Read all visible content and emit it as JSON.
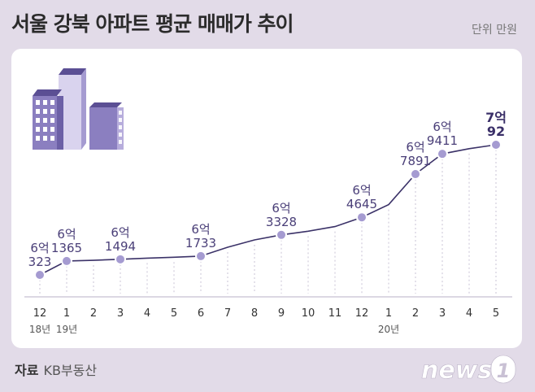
{
  "header": {
    "title": "서울 강북 아파트 평균 매매가 추이",
    "unit": "단위 만원"
  },
  "source": {
    "label": "자료",
    "value": "KB부동산"
  },
  "logo": {
    "text": "news",
    "mark": "1"
  },
  "colors": {
    "background": "#e2dbe8",
    "card": "#ffffff",
    "line": "#3b3268",
    "point": "#a59bd1",
    "point_stroke": "#ffffff",
    "label": "#4a3f78",
    "icon_primary": "#8b7fc0",
    "icon_light": "#d9d3ee",
    "icon_dark": "#5b4f94"
  },
  "decoration": {
    "icon": "apartment-buildings-icon"
  },
  "chart_data": {
    "type": "line",
    "title": "서울 강북 아파트 평균 매매가 추이",
    "xlabel": "",
    "ylabel": "",
    "unit": "단위 만원",
    "categories": [
      "12",
      "1",
      "2",
      "3",
      "4",
      "5",
      "6",
      "7",
      "8",
      "9",
      "10",
      "11",
      "12",
      "1",
      "2",
      "3",
      "4",
      "5"
    ],
    "values": [
      60323,
      61365,
      61420,
      61494,
      61580,
      61650,
      61733,
      62400,
      62950,
      63328,
      63600,
      63950,
      64645,
      65600,
      67891,
      69411,
      69800,
      70092
    ],
    "year_marks": [
      {
        "index": 0,
        "label": "18년"
      },
      {
        "index": 1,
        "label": "19년"
      },
      {
        "index": 13,
        "label": "20년"
      }
    ],
    "annotations": [
      {
        "index": 0,
        "line1": "6억",
        "line2": "323"
      },
      {
        "index": 1,
        "line1": "6억",
        "line2": "1365"
      },
      {
        "index": 3,
        "line1": "6억",
        "line2": "1494"
      },
      {
        "index": 6,
        "line1": "6억",
        "line2": "1733"
      },
      {
        "index": 9,
        "line1": "6억",
        "line2": "3328"
      },
      {
        "index": 12,
        "line1": "6억",
        "line2": "4645"
      },
      {
        "index": 14,
        "line1": "6억",
        "line2": "7891"
      },
      {
        "index": 15,
        "line1": "6억",
        "line2": "9411"
      },
      {
        "index": 17,
        "line1": "7억",
        "line2": "92"
      }
    ],
    "ylim": [
      58500,
      71500
    ],
    "grid": "vertical-dotted",
    "legend": "none"
  }
}
